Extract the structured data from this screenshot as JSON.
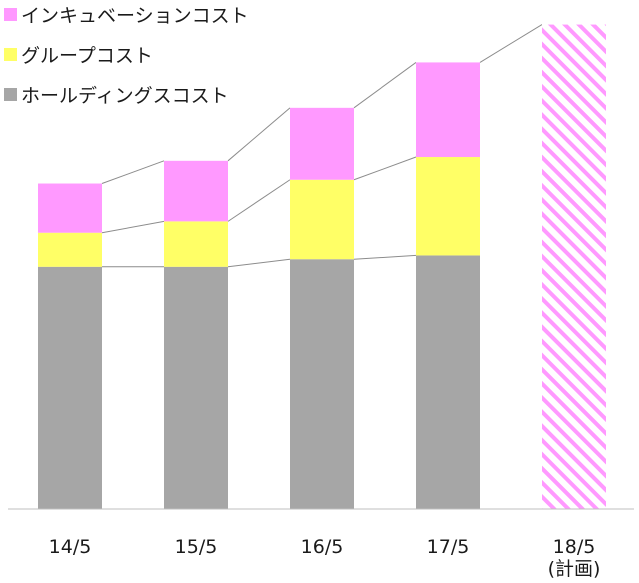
{
  "chart_data": {
    "type": "bar",
    "stacked": true,
    "categories": [
      "14/5",
      "15/5",
      "16/5",
      "17/5",
      "18/5\n(計画)"
    ],
    "series": [
      {
        "name": "ホールディングスコスト",
        "color": "#a6a6a6",
        "values": [
          64,
          64,
          66,
          67,
          null
        ]
      },
      {
        "name": "グループコスト",
        "color": "#ffff66",
        "values": [
          9,
          12,
          21,
          26,
          null
        ]
      },
      {
        "name": "インキュベーションコスト",
        "color": "#ff99ff",
        "values": [
          13,
          16,
          19,
          25,
          null
        ]
      }
    ],
    "plan": {
      "category": "18/5\n(計画)",
      "total": 128,
      "pattern": "diagonal-hatch",
      "color": "#ff99ff"
    },
    "series_lines": true,
    "legend_position": "top-left",
    "ylim": [
      0,
      130
    ],
    "grid": false,
    "title": "",
    "xlabel": "",
    "ylabel": ""
  }
}
